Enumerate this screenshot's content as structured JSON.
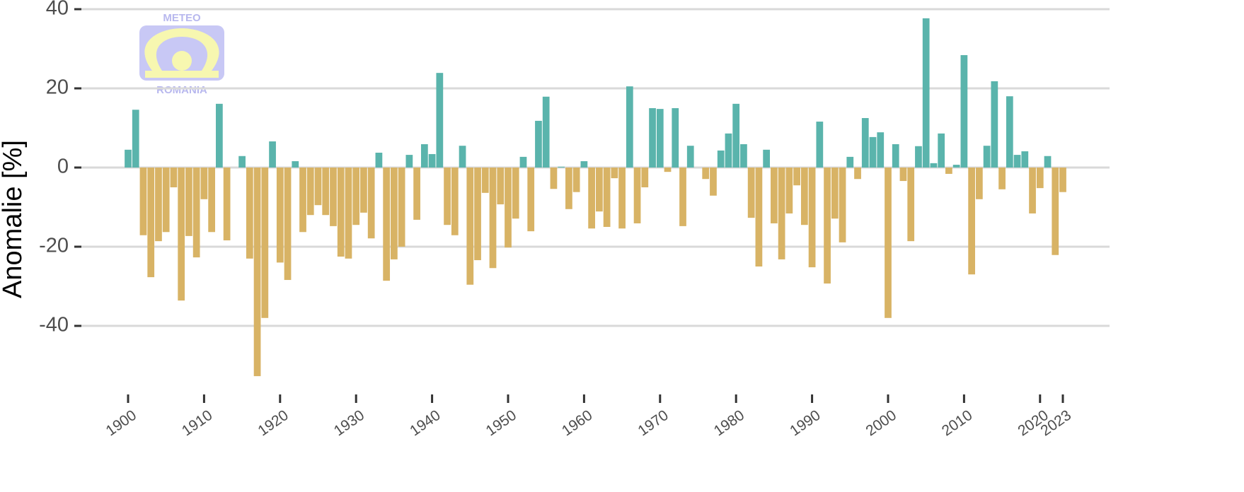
{
  "chart_data": {
    "type": "bar",
    "y_label": "Anomalie [%]",
    "logo": {
      "top": "METEO",
      "bottom": "ROMANIA"
    },
    "x": [
      1900,
      1901,
      1902,
      1903,
      1904,
      1905,
      1906,
      1907,
      1908,
      1909,
      1910,
      1911,
      1912,
      1913,
      1914,
      1915,
      1916,
      1917,
      1918,
      1919,
      1920,
      1921,
      1922,
      1923,
      1924,
      1925,
      1926,
      1927,
      1928,
      1929,
      1930,
      1931,
      1932,
      1933,
      1934,
      1935,
      1936,
      1937,
      1938,
      1939,
      1940,
      1941,
      1942,
      1943,
      1944,
      1945,
      1946,
      1947,
      1948,
      1949,
      1950,
      1951,
      1952,
      1953,
      1954,
      1955,
      1956,
      1957,
      1958,
      1959,
      1960,
      1961,
      1962,
      1963,
      1964,
      1965,
      1966,
      1967,
      1968,
      1969,
      1970,
      1971,
      1972,
      1973,
      1974,
      1975,
      1976,
      1977,
      1978,
      1979,
      1980,
      1981,
      1982,
      1983,
      1984,
      1985,
      1986,
      1987,
      1988,
      1989,
      1990,
      1991,
      1992,
      1993,
      1994,
      1995,
      1996,
      1997,
      1998,
      1999,
      2000,
      2001,
      2002,
      2003,
      2004,
      2005,
      2006,
      2007,
      2008,
      2009,
      2010,
      2011,
      2012,
      2013,
      2014,
      2015,
      2016,
      2017,
      2018,
      2019,
      2020,
      2021,
      2022,
      2023
    ],
    "values": [
      4.5,
      14.6,
      -17.1,
      -27.7,
      -18.6,
      -16.3,
      -5,
      -33.6,
      -17.3,
      -22.7,
      -8,
      -16.3,
      16.1,
      -18.4,
      0,
      2.9,
      -23,
      -52.7,
      -38,
      6.6,
      -24,
      -28.4,
      1.6,
      -16.3,
      -12,
      -9.5,
      -12,
      -14.8,
      -22.5,
      -23,
      -14.5,
      -11.4,
      -17.9,
      3.75,
      -28.6,
      -23.2,
      -20,
      3.2,
      -13.2,
      5.9,
      3.4,
      23.9,
      -14.5,
      -17.1,
      5.5,
      -29.6,
      -23.4,
      -6.4,
      -25.4,
      -9.3,
      -20.2,
      -12.9,
      2.7,
      -16.1,
      11.8,
      17.9,
      -5.4,
      0.2,
      -10.5,
      -6.2,
      1.6,
      -15.4,
      -11.1,
      -15,
      -2.7,
      -15.4,
      20.5,
      -14.1,
      -5,
      15,
      14.8,
      -1.1,
      15,
      -14.8,
      5.5,
      0,
      -2.9,
      -7.1,
      4.3,
      8.6,
      16.1,
      5.9,
      -12.7,
      -25,
      4.5,
      -14.1,
      -23.2,
      -11.6,
      -4.5,
      -14.5,
      -25.2,
      11.6,
      -29.3,
      -12.9,
      -18.9,
      2.7,
      -2.9,
      12.5,
      7.7,
      8.9,
      -38,
      5.9,
      -3.4,
      -18.6,
      5.4,
      37.7,
      1.1,
      8.6,
      -1.6,
      0.7,
      28.4,
      -27,
      -8,
      5.5,
      21.8,
      -5.5,
      18,
      3.2,
      4.1,
      -11.6,
      -5.2,
      2.9,
      -22.1,
      -6.2
    ],
    "positive_color": "#5ab4ac",
    "negative_color": "#d8b365",
    "xlim": [
      1895,
      2028
    ],
    "xticks": [
      1900,
      1910,
      1920,
      1930,
      1940,
      1950,
      1960,
      1970,
      1980,
      1990,
      2000,
      2010,
      2020,
      2023
    ],
    "ylim": [
      -55,
      40
    ],
    "yticks": [
      40,
      20,
      0,
      -20,
      -40
    ],
    "grid": true
  }
}
